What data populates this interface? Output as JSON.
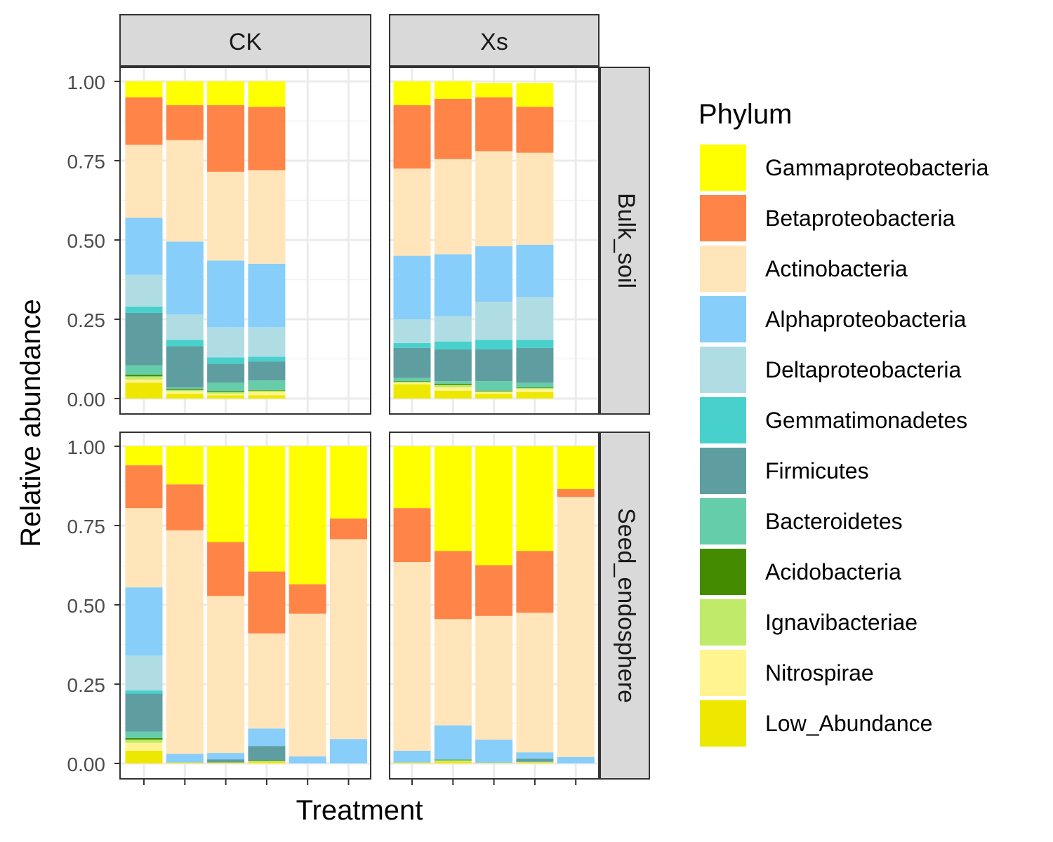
{
  "chart_data": {
    "type": "bar",
    "stacked": true,
    "facet_columns": [
      "CK",
      "Xs"
    ],
    "facet_rows": [
      "Bulk_soil",
      "Seed_endosphere"
    ],
    "xlabel": "Treatment",
    "ylabel": "Relative abundance",
    "ylim": [
      0,
      1
    ],
    "yticks": [
      "0.00",
      "0.25",
      "0.50",
      "0.75",
      "1.00"
    ],
    "x_tick_labels_shown": false,
    "grid": true,
    "legend_position": "right",
    "legend": {
      "title": "Phylum",
      "items": [
        {
          "name": "Gammaproteobacteria",
          "color": "#FFFF00"
        },
        {
          "name": "Betaproteobacteria",
          "color": "#FF8448"
        },
        {
          "name": "Actinobacteria",
          "color": "#FFE5B9"
        },
        {
          "name": "Alphaproteobacteria",
          "color": "#87CEFA"
        },
        {
          "name": "Deltaproteobacteria",
          "color": "#B0DDE3"
        },
        {
          "name": "Gemmatimonadetes",
          "color": "#48D1CC"
        },
        {
          "name": "Firmicutes",
          "color": "#5F9EA0"
        },
        {
          "name": "Bacteroidetes",
          "color": "#66CDAA"
        },
        {
          "name": "Acidobacteria",
          "color": "#458B00"
        },
        {
          "name": "Ignavibacteriae",
          "color": "#C0EB6A"
        },
        {
          "name": "Nitrospirae",
          "color": "#FFF48F"
        },
        {
          "name": "Low_Abundance",
          "color": "#EEE800"
        }
      ]
    },
    "panels": [
      {
        "col": "CK",
        "row": "Bulk_soil",
        "bars": [
          {
            "Low_Abundance": 0.05,
            "Nitrospirae": 0.01,
            "Ignavibacteriae": 0.01,
            "Acidobacteria": 0.005,
            "Bacteroidetes": 0.03,
            "Firmicutes": 0.165,
            "Gemmatimonadetes": 0.02,
            "Deltaproteobacteria": 0.1,
            "Alphaproteobacteria": 0.18,
            "Actinobacteria": 0.23,
            "Betaproteobacteria": 0.15,
            "Gammaproteobacteria": 0.05
          },
          {
            "Low_Abundance": 0.015,
            "Nitrospirae": 0.008,
            "Ignavibacteriae": 0.004,
            "Acidobacteria": 0.003,
            "Bacteroidetes": 0.005,
            "Firmicutes": 0.13,
            "Gemmatimonadetes": 0.02,
            "Deltaproteobacteria": 0.08,
            "Alphaproteobacteria": 0.23,
            "Actinobacteria": 0.32,
            "Betaproteobacteria": 0.11,
            "Gammaproteobacteria": 0.075
          },
          {
            "Low_Abundance": 0.01,
            "Nitrospirae": 0.005,
            "Ignavibacteriae": 0.005,
            "Acidobacteria": 0.003,
            "Bacteroidetes": 0.027,
            "Firmicutes": 0.06,
            "Gemmatimonadetes": 0.02,
            "Deltaproteobacteria": 0.095,
            "Alphaproteobacteria": 0.21,
            "Actinobacteria": 0.28,
            "Betaproteobacteria": 0.21,
            "Gammaproteobacteria": 0.075
          },
          {
            "Low_Abundance": 0.01,
            "Nitrospirae": 0.01,
            "Ignavibacteriae": 0.005,
            "Acidobacteria": 0.002,
            "Bacteroidetes": 0.03,
            "Firmicutes": 0.06,
            "Gemmatimonadetes": 0.015,
            "Deltaproteobacteria": 0.093,
            "Alphaproteobacteria": 0.2,
            "Actinobacteria": 0.295,
            "Betaproteobacteria": 0.2,
            "Gammaproteobacteria": 0.08
          }
        ]
      },
      {
        "col": "Xs",
        "row": "Bulk_soil",
        "bars": [
          {
            "Low_Abundance": 0.045,
            "Nitrospirae": 0.005,
            "Ignavibacteriae": 0.003,
            "Acidobacteria": 0.002,
            "Bacteroidetes": 0.01,
            "Firmicutes": 0.095,
            "Gemmatimonadetes": 0.015,
            "Deltaproteobacteria": 0.075,
            "Alphaproteobacteria": 0.2,
            "Actinobacteria": 0.275,
            "Betaproteobacteria": 0.2,
            "Gammaproteobacteria": 0.075
          },
          {
            "Low_Abundance": 0.025,
            "Nitrospirae": 0.01,
            "Ignavibacteriae": 0.008,
            "Acidobacteria": 0.004,
            "Bacteroidetes": 0.008,
            "Firmicutes": 0.1,
            "Gemmatimonadetes": 0.025,
            "Deltaproteobacteria": 0.08,
            "Alphaproteobacteria": 0.195,
            "Actinobacteria": 0.3,
            "Betaproteobacteria": 0.19,
            "Gammaproteobacteria": 0.055
          },
          {
            "Low_Abundance": 0.015,
            "Nitrospirae": 0.005,
            "Ignavibacteriae": 0.003,
            "Acidobacteria": 0.002,
            "Bacteroidetes": 0.03,
            "Firmicutes": 0.1,
            "Gemmatimonadetes": 0.03,
            "Deltaproteobacteria": 0.12,
            "Alphaproteobacteria": 0.175,
            "Actinobacteria": 0.3,
            "Betaproteobacteria": 0.17,
            "Gammaproteobacteria": 0.045
          },
          {
            "Low_Abundance": 0.02,
            "Nitrospirae": 0.01,
            "Ignavibacteriae": 0.003,
            "Acidobacteria": 0.002,
            "Bacteroidetes": 0.015,
            "Firmicutes": 0.11,
            "Gemmatimonadetes": 0.025,
            "Deltaproteobacteria": 0.135,
            "Alphaproteobacteria": 0.165,
            "Actinobacteria": 0.29,
            "Betaproteobacteria": 0.145,
            "Gammaproteobacteria": 0.075
          }
        ]
      },
      {
        "col": "CK",
        "row": "Seed_endosphere",
        "bars": [
          {
            "Low_Abundance": 0.04,
            "Nitrospirae": 0.025,
            "Ignavibacteriae": 0.01,
            "Acidobacteria": 0.005,
            "Bacteroidetes": 0.02,
            "Firmicutes": 0.12,
            "Gemmatimonadetes": 0.01,
            "Deltaproteobacteria": 0.11,
            "Alphaproteobacteria": 0.215,
            "Actinobacteria": 0.25,
            "Betaproteobacteria": 0.135,
            "Gammaproteobacteria": 0.06
          },
          {
            "Low_Abundance": 0.003,
            "Nitrospirae": 0.0,
            "Ignavibacteriae": 0.0,
            "Acidobacteria": 0.0,
            "Bacteroidetes": 0.0,
            "Firmicutes": 0.0,
            "Gemmatimonadetes": 0.0,
            "Deltaproteobacteria": 0.0,
            "Alphaproteobacteria": 0.027,
            "Actinobacteria": 0.705,
            "Betaproteobacteria": 0.145,
            "Gammaproteobacteria": 0.12
          },
          {
            "Low_Abundance": 0.003,
            "Nitrospirae": 0.0,
            "Ignavibacteriae": 0.0,
            "Acidobacteria": 0.0,
            "Bacteroidetes": 0.0,
            "Firmicutes": 0.01,
            "Gemmatimonadetes": 0.0,
            "Deltaproteobacteria": 0.0,
            "Alphaproteobacteria": 0.02,
            "Actinobacteria": 0.495,
            "Betaproteobacteria": 0.17,
            "Gammaproteobacteria": 0.302
          },
          {
            "Low_Abundance": 0.005,
            "Nitrospirae": 0.0,
            "Ignavibacteriae": 0.003,
            "Acidobacteria": 0.002,
            "Bacteroidetes": 0.0,
            "Firmicutes": 0.045,
            "Gemmatimonadetes": 0.0,
            "Deltaproteobacteria": 0.0,
            "Alphaproteobacteria": 0.055,
            "Actinobacteria": 0.3,
            "Betaproteobacteria": 0.195,
            "Gammaproteobacteria": 0.395
          },
          {
            "Low_Abundance": 0.0,
            "Nitrospirae": 0.0,
            "Ignavibacteriae": 0.0,
            "Acidobacteria": 0.0,
            "Bacteroidetes": 0.0,
            "Firmicutes": 0.0,
            "Gemmatimonadetes": 0.0,
            "Deltaproteobacteria": 0.0,
            "Alphaproteobacteria": 0.022,
            "Actinobacteria": 0.45,
            "Betaproteobacteria": 0.093,
            "Gammaproteobacteria": 0.435
          },
          {
            "Low_Abundance": 0.0,
            "Nitrospirae": 0.0,
            "Ignavibacteriae": 0.0,
            "Acidobacteria": 0.0,
            "Bacteroidetes": 0.0,
            "Firmicutes": 0.0,
            "Gemmatimonadetes": 0.0,
            "Deltaproteobacteria": 0.0,
            "Alphaproteobacteria": 0.077,
            "Actinobacteria": 0.63,
            "Betaproteobacteria": 0.065,
            "Gammaproteobacteria": 0.228
          }
        ]
      },
      {
        "col": "Xs",
        "row": "Seed_endosphere",
        "bars": [
          {
            "Low_Abundance": 0.003,
            "Nitrospirae": 0.0,
            "Ignavibacteriae": 0.0,
            "Acidobacteria": 0.0,
            "Bacteroidetes": 0.0,
            "Firmicutes": 0.0,
            "Gemmatimonadetes": 0.0,
            "Deltaproteobacteria": 0.0,
            "Alphaproteobacteria": 0.037,
            "Actinobacteria": 0.595,
            "Betaproteobacteria": 0.17,
            "Gammaproteobacteria": 0.195
          },
          {
            "Low_Abundance": 0.005,
            "Nitrospirae": 0.0,
            "Ignavibacteriae": 0.005,
            "Acidobacteria": 0.002,
            "Bacteroidetes": 0.0,
            "Firmicutes": 0.0,
            "Gemmatimonadetes": 0.0,
            "Deltaproteobacteria": 0.0,
            "Alphaproteobacteria": 0.108,
            "Actinobacteria": 0.335,
            "Betaproteobacteria": 0.215,
            "Gammaproteobacteria": 0.33
          },
          {
            "Low_Abundance": 0.002,
            "Nitrospirae": 0.0,
            "Ignavibacteriae": 0.0,
            "Acidobacteria": 0.0,
            "Bacteroidetes": 0.0,
            "Firmicutes": 0.0,
            "Gemmatimonadetes": 0.0,
            "Deltaproteobacteria": 0.0,
            "Alphaproteobacteria": 0.073,
            "Actinobacteria": 0.39,
            "Betaproteobacteria": 0.16,
            "Gammaproteobacteria": 0.375
          },
          {
            "Low_Abundance": 0.003,
            "Nitrospirae": 0.0,
            "Ignavibacteriae": 0.002,
            "Acidobacteria": 0.0,
            "Bacteroidetes": 0.0,
            "Firmicutes": 0.01,
            "Gemmatimonadetes": 0.0,
            "Deltaproteobacteria": 0.0,
            "Alphaproteobacteria": 0.02,
            "Actinobacteria": 0.44,
            "Betaproteobacteria": 0.195,
            "Gammaproteobacteria": 0.33
          },
          {
            "Low_Abundance": 0.0,
            "Nitrospirae": 0.0,
            "Ignavibacteriae": 0.0,
            "Acidobacteria": 0.0,
            "Bacteroidetes": 0.0,
            "Firmicutes": 0.0,
            "Gemmatimonadetes": 0.0,
            "Deltaproteobacteria": 0.0,
            "Alphaproteobacteria": 0.02,
            "Actinobacteria": 0.82,
            "Betaproteobacteria": 0.025,
            "Gammaproteobacteria": 0.135
          }
        ]
      }
    ]
  }
}
